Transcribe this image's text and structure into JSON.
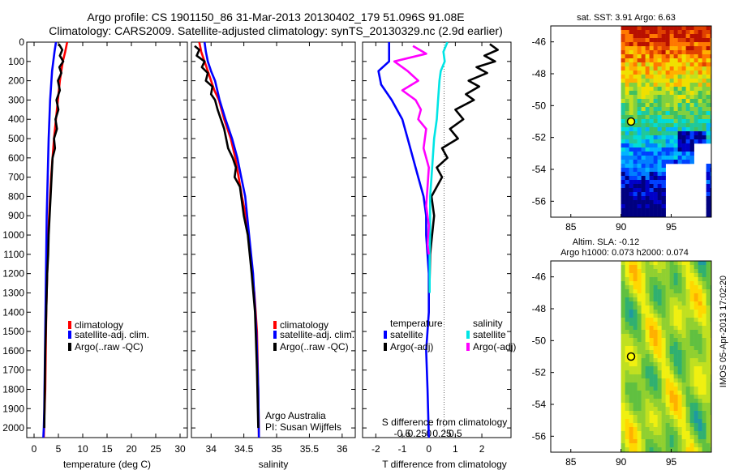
{
  "title": {
    "line1": "Argo profile: CS 1901150_86 31-Mar-2013 20130402_179 51.096S 91.08E",
    "line2": "Climatology: CARS2009. Satellite-adjusted climatology: synTS_20130329.nc (2.9d earlier)"
  },
  "footer": {
    "vertical_stamp": "IMOS 05-Apr-2013 17:02:20",
    "credit1": "Argo Australia",
    "credit2": "PI: Susan Wijffels"
  },
  "colors": {
    "climatology": "#ff0000",
    "satellite": "#0000ff",
    "argo": "#000000",
    "sat_salinity": "#00e5e5",
    "argo_salinity": "#ff00ff"
  },
  "chart_data": [
    {
      "id": "temperature",
      "type": "line",
      "xlabel": "temperature (deg C)",
      "ylabel": "",
      "xlim": [
        -1.5,
        31.5
      ],
      "ylim": [
        0,
        2050
      ],
      "xticks": [
        0,
        5,
        10,
        15,
        20,
        25,
        30
      ],
      "yticks": [
        0,
        100,
        200,
        300,
        400,
        500,
        600,
        700,
        800,
        900,
        1000,
        1100,
        1200,
        1300,
        1400,
        1500,
        1600,
        1700,
        1800,
        1900,
        2000
      ],
      "legend": [
        "climatology",
        "satellite-adj. clim.",
        "Argo(..raw -QC)"
      ],
      "series": [
        {
          "name": "climatology",
          "color": "#ff0000",
          "x": [
            6.8,
            6.4,
            5.9,
            5.3,
            4.9,
            4.5,
            4.1,
            3.8,
            3.5,
            3.3,
            3.1,
            2.9,
            2.7,
            2.5,
            2.4,
            2.3,
            2.1,
            2.0
          ],
          "y": [
            0,
            50,
            100,
            200,
            300,
            400,
            500,
            600,
            700,
            800,
            900,
            1000,
            1200,
            1400,
            1600,
            1800,
            1950,
            2050
          ]
        },
        {
          "name": "satellite-adj. clim.",
          "color": "#0000ff",
          "x": [
            4.5,
            4.2,
            3.7,
            3.3,
            3.0,
            2.8,
            2.6,
            2.5,
            2.4,
            2.3,
            2.2,
            2.1,
            2.0,
            1.9
          ],
          "y": [
            0,
            50,
            150,
            300,
            500,
            700,
            900,
            1100,
            1300,
            1500,
            1700,
            1900,
            2000,
            2050
          ]
        },
        {
          "name": "Argo(..raw -QC)",
          "color": "#000000",
          "x": [
            5.1,
            5.8,
            5.3,
            6.0,
            5.2,
            5.6,
            4.9,
            5.3,
            4.6,
            5.0,
            4.4,
            4.7,
            4.1,
            4.3,
            3.8,
            3.6,
            3.4,
            3.2,
            3.0,
            2.9,
            2.7,
            2.5,
            2.3,
            2.2,
            2.1
          ],
          "y": [
            10,
            40,
            70,
            100,
            130,
            160,
            200,
            250,
            300,
            350,
            400,
            450,
            500,
            550,
            600,
            700,
            800,
            900,
            1000,
            1100,
            1200,
            1400,
            1600,
            1800,
            2000
          ]
        }
      ]
    },
    {
      "id": "salinity",
      "type": "line",
      "xlabel": "salinity",
      "ylabel": "",
      "xlim": [
        33.7,
        36.2
      ],
      "ylim": [
        0,
        2050
      ],
      "xticks": [
        34,
        34.5,
        35,
        35.5,
        36
      ],
      "legend": [
        "climatology",
        "satellite-adj. clim.",
        "Argo(..raw -QC)"
      ],
      "series": [
        {
          "name": "climatology",
          "color": "#ff0000",
          "x": [
            33.82,
            33.85,
            33.9,
            33.95,
            34.0,
            34.05,
            34.12,
            34.2,
            34.3,
            34.37,
            34.42,
            34.47,
            34.53,
            34.6,
            34.66,
            34.7,
            34.72,
            34.73
          ],
          "y": [
            0,
            50,
            100,
            150,
            200,
            250,
            300,
            400,
            500,
            600,
            700,
            800,
            900,
            1100,
            1300,
            1500,
            1800,
            2050
          ]
        },
        {
          "name": "satellite-adj. clim.",
          "color": "#0000ff",
          "x": [
            33.9,
            33.92,
            33.95,
            34.0,
            34.06,
            34.13,
            34.22,
            34.32,
            34.4,
            34.46,
            34.52,
            34.58,
            34.64,
            34.69,
            34.72,
            34.73
          ],
          "y": [
            0,
            50,
            100,
            150,
            200,
            300,
            400,
            500,
            600,
            700,
            800,
            1000,
            1200,
            1500,
            1800,
            2050
          ]
        },
        {
          "name": "Argo(..raw -QC)",
          "color": "#000000",
          "x": [
            33.75,
            33.82,
            33.78,
            33.9,
            33.86,
            33.95,
            33.92,
            34.02,
            34.0,
            34.06,
            34.1,
            34.2,
            34.26,
            34.33,
            34.38,
            34.36,
            34.44,
            34.5,
            34.56,
            34.62,
            34.67,
            34.7,
            34.72
          ],
          "y": [
            20,
            40,
            70,
            100,
            130,
            160,
            200,
            230,
            270,
            300,
            350,
            450,
            550,
            600,
            650,
            700,
            750,
            900,
            1000,
            1200,
            1400,
            1700,
            2000
          ]
        }
      ]
    },
    {
      "id": "difference",
      "type": "line",
      "xlabel": "T difference from climatology",
      "xlabel2": "S difference from climatology",
      "xlim": [
        -2.5,
        3.1
      ],
      "ylim": [
        0,
        2050
      ],
      "xticks": [
        -2,
        -1,
        0,
        1,
        2
      ],
      "xticks2": [
        -0.5,
        -0.25,
        0,
        0.25,
        0.5
      ],
      "legend_title_left": "temperature",
      "legend_title_right": "salinity",
      "legend": [
        "satellite",
        "Argo(-adj)",
        "satellite",
        "Argo(-adj)"
      ],
      "series": [
        {
          "name": "T satellite",
          "color": "#0000ff",
          "x": [
            -1.5,
            -1.5,
            -1.9,
            -1.8,
            -1.4,
            -1.0,
            -0.8,
            -0.6,
            -0.4,
            -0.2,
            -0.1,
            -0.1,
            0.0,
            0.0,
            -0.1,
            -0.05,
            0.0
          ],
          "y": [
            0,
            100,
            150,
            220,
            300,
            400,
            500,
            600,
            700,
            800,
            900,
            1000,
            1200,
            1400,
            1600,
            1800,
            2050
          ]
        },
        {
          "name": "T Argo(-adj)",
          "color": "#000000",
          "x": [
            2.3,
            2.6,
            2.1,
            2.5,
            1.8,
            2.2,
            1.5,
            1.9,
            1.4,
            1.7,
            1.0,
            1.3,
            0.8,
            1.1,
            0.5,
            0.7,
            0.3,
            0.5,
            0.1,
            0.2,
            0.05,
            0.02
          ],
          "y": [
            10,
            40,
            70,
            100,
            130,
            160,
            200,
            230,
            270,
            300,
            350,
            400,
            450,
            500,
            550,
            600,
            650,
            700,
            800,
            900,
            1100,
            1300
          ]
        },
        {
          "name": "S satellite",
          "color": "#00e5e5",
          "x": [
            0.7,
            0.55,
            0.6,
            0.45,
            0.4,
            0.35,
            0.3,
            0.2,
            0.15,
            0.1,
            0.05,
            0.05,
            0.03,
            0.03
          ],
          "y": [
            0,
            50,
            100,
            150,
            200,
            300,
            400,
            500,
            600,
            700,
            800,
            1000,
            1100,
            1300
          ]
        },
        {
          "name": "S Argo(-adj)",
          "color": "#ff00ff",
          "x": [
            -0.6,
            -0.1,
            -1.3,
            -0.8,
            -0.4,
            -1.0,
            -0.5,
            -0.3,
            -0.4,
            -0.1,
            -0.2,
            0.0,
            -0.05,
            -0.1,
            0.0,
            -0.05,
            0.0
          ],
          "y": [
            20,
            60,
            100,
            150,
            200,
            250,
            300,
            350,
            400,
            450,
            550,
            650,
            750,
            850,
            950,
            1050,
            1100
          ]
        }
      ]
    },
    {
      "id": "sst_map",
      "type": "heatmap",
      "title": "sat. SST: 3.91 Argo: 6.63",
      "xlim": [
        83,
        99
      ],
      "ylim": [
        -57,
        -45
      ],
      "xticks": [
        85,
        90,
        95
      ],
      "yticks": [
        -46,
        -48,
        -50,
        -52,
        -54,
        -56
      ],
      "marker": {
        "lon": 91.08,
        "lat": -51.1
      }
    },
    {
      "id": "sla_map",
      "type": "heatmap",
      "title": "Altim. SLA: -0.12",
      "subtitle": "Argo h1000: 0.073 h2000: 0.074",
      "xlim": [
        83,
        99
      ],
      "ylim": [
        -57,
        -45
      ],
      "xticks": [
        85,
        90,
        95
      ],
      "yticks": [
        -46,
        -48,
        -50,
        -52,
        -54,
        -56
      ],
      "marker": {
        "lon": 91.08,
        "lat": -51.1
      }
    }
  ]
}
